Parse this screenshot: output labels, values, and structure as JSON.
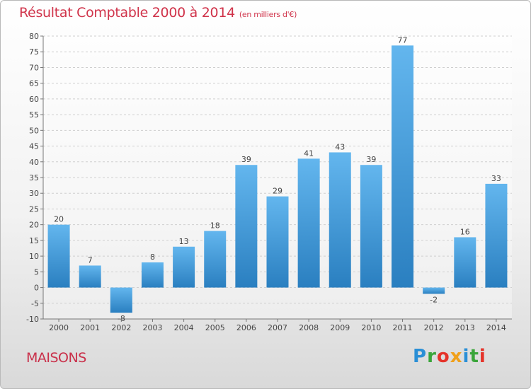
{
  "header": {
    "title": "Résultat Comptable 2000 à 2014",
    "subtitle": "(en milliers d'€)"
  },
  "footer": {
    "location": "MAISONS",
    "logo": "Proxiti",
    "logo_colors": [
      "#2a8fd6",
      "#3aa53a",
      "#e5332a",
      "#f0a01a",
      "#2a8fd6",
      "#3aa53a",
      "#e5332a"
    ]
  },
  "colors": {
    "bar_light": "#63b6ee",
    "bar_dark": "#2a7fc0",
    "title": "#d0334a",
    "grid": "#cfcfcf"
  },
  "chart_data": {
    "type": "bar",
    "categories": [
      "2000",
      "2001",
      "2002",
      "2003",
      "2004",
      "2005",
      "2006",
      "2007",
      "2008",
      "2009",
      "2010",
      "2011",
      "2012",
      "2013",
      "2014"
    ],
    "values": [
      20,
      7,
      -8,
      8,
      13,
      18,
      39,
      29,
      41,
      43,
      39,
      77,
      -2,
      16,
      33
    ],
    "ylim": [
      -10,
      80
    ],
    "yticks": [
      -10,
      -5,
      0,
      5,
      10,
      15,
      20,
      25,
      30,
      35,
      40,
      45,
      50,
      55,
      60,
      65,
      70,
      75,
      80
    ],
    "grid": "dashed horizontal",
    "legend": "none"
  }
}
